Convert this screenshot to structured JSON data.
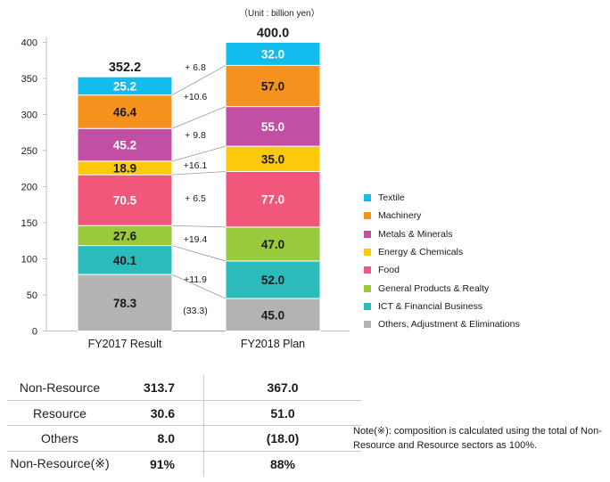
{
  "unit_note": "（Unit : billion yen）",
  "chart_data": {
    "type": "stacked-bar",
    "ylim": [
      0,
      400
    ],
    "yticks": [
      0,
      50,
      100,
      150,
      200,
      250,
      300,
      350,
      400
    ],
    "categories": [
      "FY2017 Result",
      "FY2018 Plan"
    ],
    "totals": [
      "352.2",
      "400.0"
    ],
    "series": [
      {
        "name": "Others, Adjustment & Eliminations",
        "color": "#b3b3b3",
        "values": [
          78.3,
          45.0
        ],
        "labels": [
          "78.3",
          "45.0"
        ],
        "text_color": "#1a1a1a"
      },
      {
        "name": "ICT & Financial Business",
        "color": "#2cbbbb",
        "values": [
          40.1,
          52.0
        ],
        "labels": [
          "40.1",
          "52.0"
        ],
        "text_color": "#1a1a1a"
      },
      {
        "name": "General Products & Realty",
        "color": "#99c93c",
        "values": [
          27.6,
          47.0
        ],
        "labels": [
          "27.6",
          "47.0"
        ],
        "text_color": "#1a1a1a"
      },
      {
        "name": "Food",
        "color": "#f0577a",
        "values": [
          70.5,
          77.0
        ],
        "labels": [
          "70.5",
          "77.0"
        ],
        "text_color": "#ffffff"
      },
      {
        "name": "Energy & Chemicals",
        "color": "#fdc90b",
        "values": [
          18.9,
          35.0
        ],
        "labels": [
          "18.9",
          "35.0"
        ],
        "text_color": "#1a1a1a"
      },
      {
        "name": "Metals & Minerals",
        "color": "#c150a5",
        "values": [
          45.2,
          55.0
        ],
        "labels": [
          "45.2",
          "55.0"
        ],
        "text_color": "#ffffff"
      },
      {
        "name": "Machinery",
        "color": "#f5921e",
        "values": [
          46.4,
          57.0
        ],
        "labels": [
          "46.4",
          "57.0"
        ],
        "text_color": "#1a1a1a"
      },
      {
        "name": "Textile",
        "color": "#12bdee",
        "values": [
          25.2,
          32.0
        ],
        "labels": [
          "25.2",
          "32.0"
        ],
        "text_color": "#ffffff"
      }
    ],
    "changes": [
      "(33.3)",
      "+11.9",
      "+19.4",
      "+  6.5",
      "+16.1",
      "+  9.8",
      "+10.6",
      "+  6.8"
    ],
    "legend": [
      "Textile",
      "Machinery",
      "Metals & Minerals",
      "Energy & Chemicals",
      "Food",
      "General Products & Realty",
      "ICT & Financial Business",
      "Others, Adjustment & Eliminations"
    ]
  },
  "summary": {
    "rows": [
      {
        "label": "Non-Resource",
        "fy2017": "313.7",
        "fy2018": "367.0"
      },
      {
        "label": "Resource",
        "fy2017": "30.6",
        "fy2018": "51.0"
      },
      {
        "label": "Others",
        "fy2017": "8.0",
        "fy2018": "(18.0)"
      },
      {
        "label": "Non-Resource(※)",
        "fy2017": "91%",
        "fy2018": "88%"
      }
    ]
  },
  "note": "Note(※): composition is calculated using the total of Non-Resource and Resource sectors as 100%."
}
